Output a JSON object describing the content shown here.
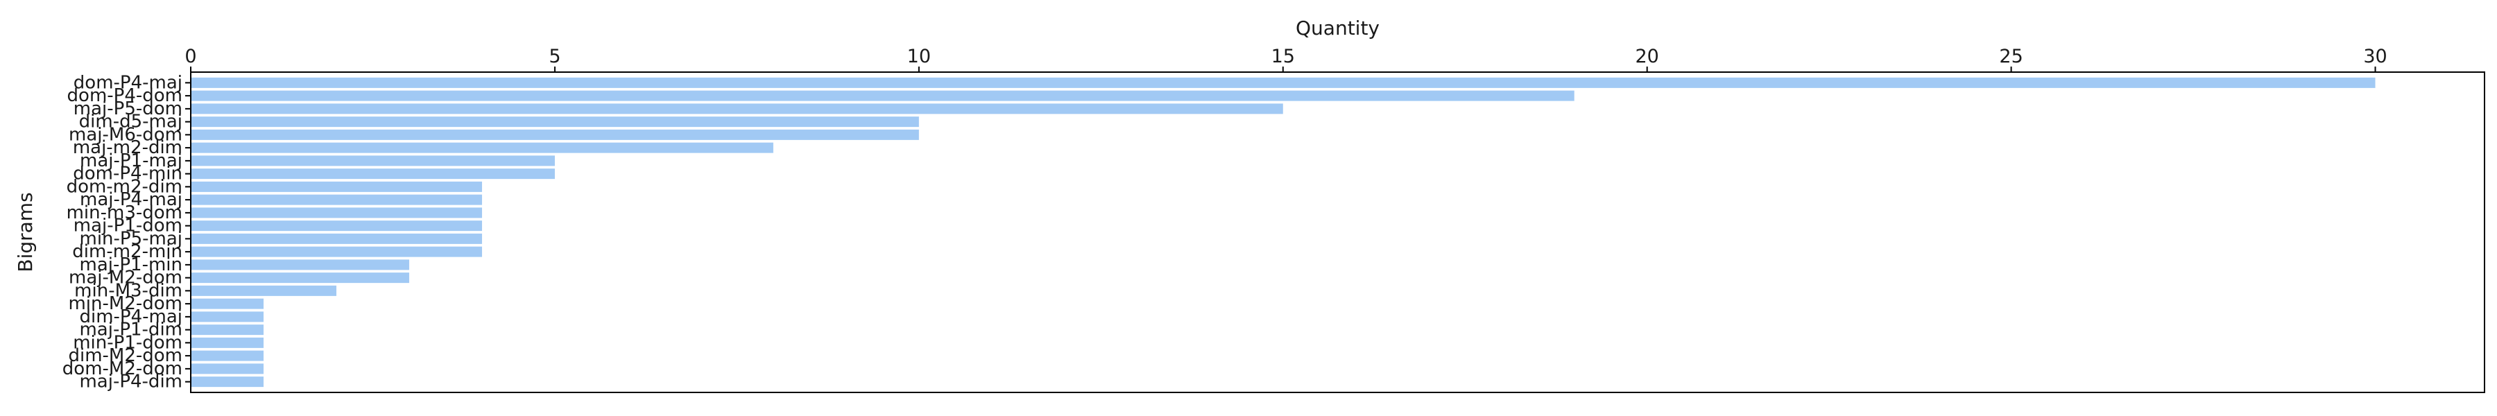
{
  "chart_data": {
    "type": "bar",
    "orientation": "horizontal",
    "xlabel": "Quantity",
    "ylabel": "Bigrams",
    "xlim": [
      0,
      31.5
    ],
    "xticks": [
      0,
      5,
      10,
      15,
      20,
      25,
      30
    ],
    "x_axis_position": "top",
    "grid": false,
    "bar_color": "#a1c9f4",
    "categories": [
      "dom-P4-maj",
      "dom-P4-dom",
      "maj-P5-dom",
      "dim-d5-maj",
      "maj-M6-dom",
      "maj-m2-dim",
      "maj-P1-maj",
      "dom-P4-min",
      "dom-m2-dim",
      "maj-P4-maj",
      "min-m3-dom",
      "maj-P1-dom",
      "min-P5-maj",
      "dim-m2-min",
      "maj-P1-min",
      "maj-M2-dom",
      "min-M3-dim",
      "min-M2-dom",
      "dim-P4-maj",
      "maj-P1-dim",
      "min-P1-dom",
      "dim-M2-dom",
      "dom-M2-dom",
      "maj-P4-dim"
    ],
    "values": [
      30,
      19,
      15,
      10,
      10,
      8,
      5,
      5,
      4,
      4,
      4,
      4,
      4,
      4,
      3,
      3,
      2,
      1,
      1,
      1,
      1,
      1,
      1,
      1
    ]
  }
}
